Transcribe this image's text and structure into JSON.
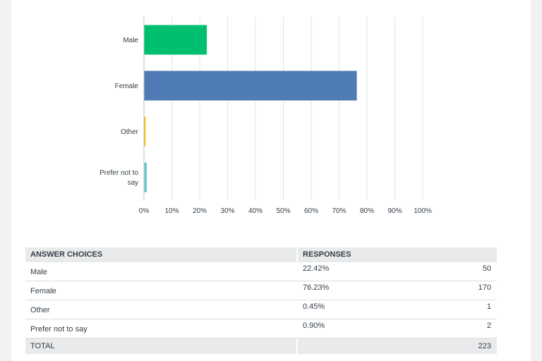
{
  "chart_data": {
    "type": "bar",
    "orientation": "horizontal",
    "categories": [
      "Male",
      "Female",
      "Other",
      "Prefer not to say"
    ],
    "values": [
      22.42,
      76.23,
      0.45,
      0.9
    ],
    "colors": [
      "#00bf6f",
      "#507cb6",
      "#f9be00",
      "#6bc8cd"
    ],
    "xlim": [
      0,
      100
    ],
    "ticks": [
      "0%",
      "10%",
      "20%",
      "30%",
      "40%",
      "50%",
      "60%",
      "70%",
      "80%",
      "90%",
      "100%"
    ],
    "grid": true
  },
  "table": {
    "headers": [
      "ANSWER CHOICES",
      "RESPONSES"
    ],
    "rows": [
      {
        "choice": "Male",
        "percent": "22.42%",
        "count": "50"
      },
      {
        "choice": "Female",
        "percent": "76.23%",
        "count": "170"
      },
      {
        "choice": "Other",
        "percent": "0.45%",
        "count": "1"
      },
      {
        "choice": "Prefer not to say",
        "percent": "0.90%",
        "count": "2"
      }
    ],
    "total": {
      "label": "TOTAL",
      "count": "223"
    }
  }
}
